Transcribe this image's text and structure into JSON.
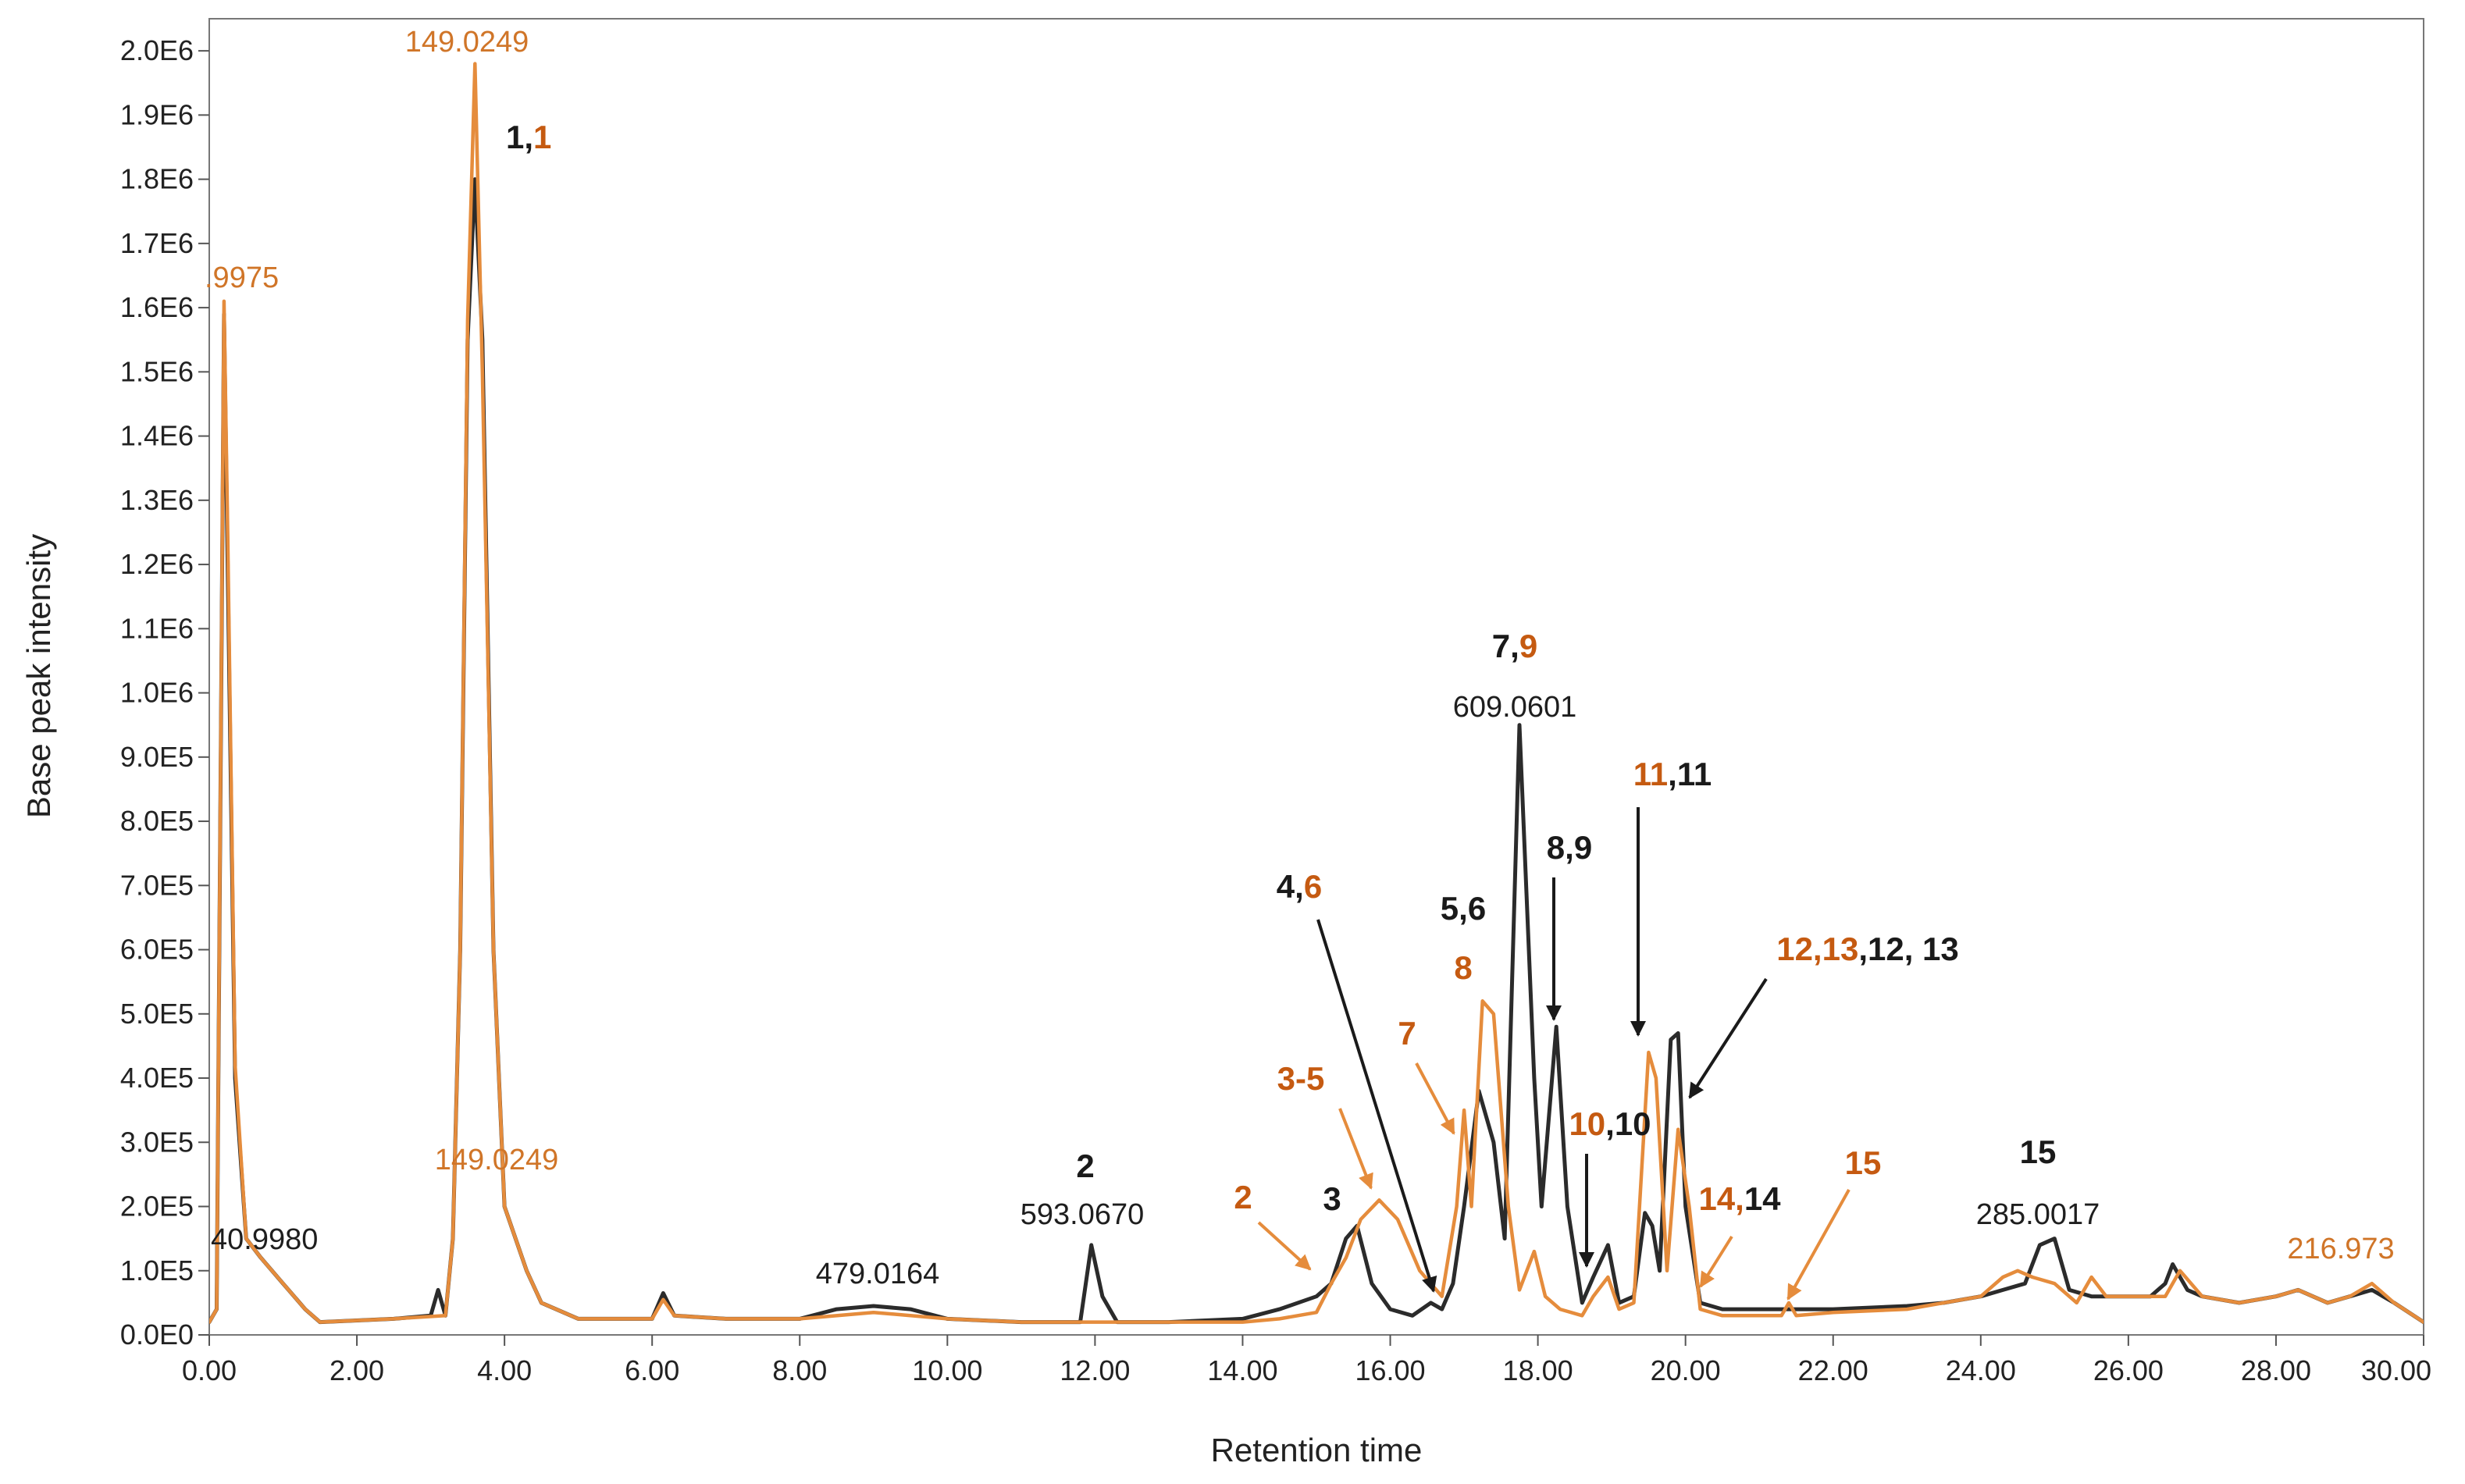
{
  "chart_data": {
    "type": "line",
    "xlabel": "Retention time",
    "ylabel": "Base peak intensity",
    "xlim": [
      0,
      30
    ],
    "ylim": [
      0,
      2050000
    ],
    "x_ticks": [
      "0.00",
      "2.00",
      "4.00",
      "6.00",
      "8.00",
      "10.00",
      "12.00",
      "14.00",
      "16.00",
      "18.00",
      "20.00",
      "22.00",
      "24.00",
      "26.00",
      "28.00",
      "30.00"
    ],
    "y_ticks": [
      "0.0E0",
      "1.0E5",
      "2.0E5",
      "3.0E5",
      "4.0E5",
      "5.0E5",
      "6.0E5",
      "7.0E5",
      "8.0E5",
      "9.0E5",
      "1.0E6",
      "1.1E6",
      "1.2E6",
      "1.3E6",
      "1.4E6",
      "1.5E6",
      "1.6E6",
      "1.7E6",
      "1.8E6",
      "1.9E6",
      "2.0E6"
    ],
    "colors": {
      "black": "#2b2b2b",
      "orange": "#e58c3c",
      "orange_text": "#c55a11"
    },
    "series": [
      {
        "name": "black",
        "color": "#2b2b2b",
        "x": [
          0,
          0.1,
          0.2,
          0.25,
          0.35,
          0.5,
          0.7,
          1.0,
          1.3,
          1.5,
          2.5,
          3.0,
          3.1,
          3.2,
          3.3,
          3.4,
          3.5,
          3.6,
          3.7,
          3.85,
          4.0,
          4.3,
          4.5,
          5.0,
          6.0,
          6.15,
          6.3,
          7.0,
          8.0,
          8.5,
          9.0,
          9.5,
          10.0,
          11.0,
          11.8,
          11.95,
          12.1,
          12.3,
          13.0,
          14.0,
          14.5,
          15.0,
          15.2,
          15.4,
          15.55,
          15.75,
          16.0,
          16.3,
          16.55,
          16.7,
          16.85,
          17.0,
          17.2,
          17.4,
          17.55,
          17.75,
          17.95,
          18.05,
          18.25,
          18.4,
          18.6,
          18.75,
          18.95,
          19.1,
          19.3,
          19.45,
          19.55,
          19.65,
          19.8,
          19.9,
          20.0,
          20.2,
          20.5,
          21.0,
          22.0,
          23.0,
          23.5,
          24.0,
          24.3,
          24.6,
          24.8,
          25.0,
          25.2,
          25.5,
          26.0,
          26.3,
          26.5,
          26.6,
          26.8,
          27.0,
          27.5,
          28.0,
          28.3,
          28.7,
          29.0,
          29.3,
          29.6,
          30.0
        ],
        "y": [
          20000,
          40000,
          1590000,
          1200000,
          400000,
          150000,
          120000,
          80000,
          40000,
          20000,
          25000,
          30000,
          70000,
          30000,
          150000,
          600000,
          1550000,
          1800000,
          1550000,
          600000,
          200000,
          100000,
          50000,
          25000,
          25000,
          65000,
          30000,
          25000,
          25000,
          40000,
          45000,
          40000,
          25000,
          20000,
          20000,
          140000,
          60000,
          20000,
          20000,
          25000,
          40000,
          60000,
          80000,
          150000,
          170000,
          80000,
          40000,
          30000,
          50000,
          40000,
          80000,
          200000,
          380000,
          300000,
          150000,
          950000,
          400000,
          200000,
          480000,
          200000,
          50000,
          90000,
          140000,
          50000,
          60000,
          190000,
          170000,
          100000,
          460000,
          470000,
          200000,
          50000,
          40000,
          40000,
          40000,
          45000,
          50000,
          60000,
          70000,
          80000,
          140000,
          150000,
          70000,
          60000,
          60000,
          60000,
          80000,
          110000,
          70000,
          60000,
          50000,
          60000,
          70000,
          50000,
          60000,
          70000,
          50000,
          20000
        ]
      },
      {
        "name": "orange",
        "color": "#e58c3c",
        "x": [
          0,
          0.1,
          0.2,
          0.25,
          0.35,
          0.5,
          0.7,
          1.0,
          1.3,
          1.5,
          2.5,
          3.2,
          3.3,
          3.4,
          3.5,
          3.6,
          3.7,
          3.85,
          4.0,
          4.3,
          4.5,
          5.0,
          6.0,
          6.15,
          6.3,
          7.0,
          8.0,
          9.0,
          10.0,
          11.0,
          12.0,
          13.0,
          14.0,
          14.5,
          15.0,
          15.2,
          15.4,
          15.6,
          15.85,
          16.1,
          16.4,
          16.7,
          16.9,
          17.0,
          17.1,
          17.25,
          17.4,
          17.6,
          17.75,
          17.95,
          18.1,
          18.3,
          18.6,
          18.75,
          18.95,
          19.1,
          19.3,
          19.5,
          19.6,
          19.75,
          19.9,
          20.05,
          20.2,
          20.5,
          21.0,
          21.3,
          21.4,
          21.5,
          22.0,
          23.0,
          23.5,
          24.0,
          24.3,
          24.5,
          24.7,
          25.0,
          25.3,
          25.5,
          25.7,
          26.0,
          26.3,
          26.5,
          26.7,
          27.0,
          27.5,
          28.0,
          28.3,
          28.7,
          29.0,
          29.3,
          29.6,
          30.0
        ],
        "y": [
          20000,
          40000,
          1610000,
          1250000,
          420000,
          150000,
          120000,
          80000,
          40000,
          20000,
          25000,
          30000,
          150000,
          600000,
          1580000,
          1980000,
          1500000,
          600000,
          200000,
          100000,
          50000,
          25000,
          25000,
          55000,
          30000,
          25000,
          25000,
          35000,
          25000,
          20000,
          20000,
          20000,
          20000,
          25000,
          35000,
          80000,
          120000,
          180000,
          210000,
          180000,
          100000,
          60000,
          200000,
          350000,
          200000,
          520000,
          500000,
          200000,
          70000,
          130000,
          60000,
          40000,
          30000,
          60000,
          90000,
          40000,
          50000,
          440000,
          400000,
          100000,
          320000,
          200000,
          40000,
          30000,
          30000,
          30000,
          50000,
          30000,
          35000,
          40000,
          50000,
          60000,
          90000,
          100000,
          90000,
          80000,
          50000,
          90000,
          60000,
          60000,
          60000,
          60000,
          100000,
          60000,
          50000,
          60000,
          70000,
          50000,
          60000,
          80000,
          50000,
          20000
        ]
      }
    ],
    "annotations": {
      "mz": [
        {
          "text": "149.0249",
          "color": "orange"
        },
        {
          "text": ".9975",
          "color": "orange"
        },
        {
          "text": "149.0249",
          "color": "orange"
        },
        {
          "text": "40.9980",
          "color": "black"
        },
        {
          "text": "479.0164",
          "color": "black"
        },
        {
          "text": "593.0670",
          "color": "black"
        },
        {
          "text": "609.0601",
          "color": "black"
        },
        {
          "text": "285.0017",
          "color": "black"
        },
        {
          "text": "216.973",
          "color": "orange"
        }
      ],
      "labels": [
        {
          "parts": [
            {
              "text": "1,",
              "color": "black"
            },
            {
              "text": "1",
              "color": "orange"
            }
          ]
        },
        {
          "parts": [
            {
              "text": "2",
              "color": "black"
            }
          ]
        },
        {
          "parts": [
            {
              "text": "2",
              "color": "orange"
            }
          ]
        },
        {
          "parts": [
            {
              "text": "3",
              "color": "black"
            }
          ]
        },
        {
          "parts": [
            {
              "text": "3-5",
              "color": "orange"
            }
          ]
        },
        {
          "parts": [
            {
              "text": "4,",
              "color": "black"
            },
            {
              "text": "6",
              "color": "orange"
            }
          ]
        },
        {
          "parts": [
            {
              "text": "7",
              "color": "orange"
            }
          ]
        },
        {
          "parts": [
            {
              "text": "5,6",
              "color": "black"
            }
          ]
        },
        {
          "parts": [
            {
              "text": "8",
              "color": "orange"
            }
          ]
        },
        {
          "parts": [
            {
              "text": "7,",
              "color": "black"
            },
            {
              "text": "9",
              "color": "orange"
            }
          ]
        },
        {
          "parts": [
            {
              "text": "8,9",
              "color": "black"
            }
          ]
        },
        {
          "parts": [
            {
              "text": "10",
              "color": "orange"
            },
            {
              "text": ",10",
              "color": "black"
            }
          ]
        },
        {
          "parts": [
            {
              "text": "11",
              "color": "orange"
            },
            {
              "text": ",11",
              "color": "black"
            }
          ]
        },
        {
          "parts": [
            {
              "text": "12,13",
              "color": "orange"
            },
            {
              "text": ",12, 13",
              "color": "black"
            }
          ]
        },
        {
          "parts": [
            {
              "text": "14,",
              "color": "orange"
            },
            {
              "text": "14",
              "color": "black"
            }
          ]
        },
        {
          "parts": [
            {
              "text": "15",
              "color": "orange"
            }
          ]
        },
        {
          "parts": [
            {
              "text": "15",
              "color": "black"
            }
          ]
        }
      ]
    }
  }
}
